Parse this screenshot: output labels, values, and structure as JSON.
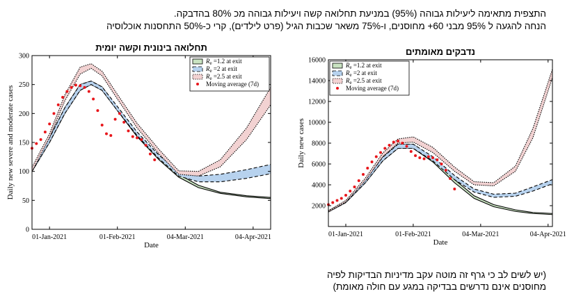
{
  "header": {
    "line1": "התצפית מתאימה ליעילות גבוהה (95%) במניעת תחלואה קשה ויעילות גבוהה מכ 80% בהדבקה.",
    "line2": "הנחה להגעה ל 95%  מבני 60+ מחוסנים, ו-75% משאר שכבות הגיל (פרט לילדים), קרי כ-50% התחסנות אוכלוסיה"
  },
  "footer": {
    "line1": "(יש לשים לב כי גרף זה מוטה עקב מדיניות הבדיקות לפיה",
    "line2": "מחוסנים אינם נדרשים בבדיקה במגע עם חולה מאומת)"
  },
  "colors": {
    "band_low": "#c9e3c1",
    "band_mid": "#b7d2ee",
    "band_high": "#f2d2d2",
    "line": "#000000",
    "dots": "#e8161b"
  },
  "chart_data": [
    {
      "type": "line",
      "title": "תחלואה בינונית וקשה יומית",
      "xlabel": "Date",
      "ylabel": "Daily new severe and moderate cases",
      "xlim": [
        "2020-12-24",
        "2021-04-12"
      ],
      "ylim": [
        0,
        300
      ],
      "x_ticks": [
        "01-Jan-2021",
        "01-Feb-2021",
        "04-Mar-2021",
        "04-Apr-2021"
      ],
      "y_ticks": [
        0,
        50,
        100,
        150,
        200,
        250,
        300
      ],
      "grid": false,
      "legend_position": "top-right",
      "legend": [
        "R_e =1.2 at exit",
        "R_e =2 at exit",
        "R_e =2.5 at exit",
        "Moving average (7d)"
      ],
      "series": [
        {
          "name": "R_e =1.2 at exit",
          "style": "band",
          "x": [
            "2020-12-24",
            "2021-01-01",
            "2021-01-08",
            "2021-01-15",
            "2021-01-20",
            "2021-01-25",
            "2021-02-01",
            "2021-02-10",
            "2021-02-20",
            "2021-03-01",
            "2021-03-10",
            "2021-03-20",
            "2021-04-01",
            "2021-04-12"
          ],
          "lower": [
            100,
            150,
            200,
            240,
            250,
            240,
            205,
            160,
            120,
            90,
            72,
            62,
            56,
            53
          ],
          "upper": [
            105,
            158,
            210,
            250,
            256,
            246,
            210,
            165,
            125,
            95,
            76,
            64,
            58,
            55
          ]
        },
        {
          "name": "R_e =2 at exit",
          "style": "band",
          "x": [
            "2020-12-24",
            "2021-01-01",
            "2021-01-08",
            "2021-01-15",
            "2021-01-20",
            "2021-01-25",
            "2021-02-01",
            "2021-02-10",
            "2021-02-20",
            "2021-03-01",
            "2021-03-10",
            "2021-03-20",
            "2021-04-01",
            "2021-04-12"
          ],
          "lower": [
            100,
            150,
            200,
            240,
            250,
            240,
            205,
            162,
            122,
            92,
            82,
            82,
            88,
            96
          ],
          "upper": [
            105,
            158,
            210,
            250,
            256,
            246,
            212,
            168,
            128,
            100,
            92,
            95,
            103,
            112
          ]
        },
        {
          "name": "R_e =2.5 at exit",
          "style": "band",
          "x": [
            "2020-12-24",
            "2021-01-01",
            "2021-01-08",
            "2021-01-15",
            "2021-01-20",
            "2021-01-25",
            "2021-02-01",
            "2021-02-10",
            "2021-02-20",
            "2021-03-01",
            "2021-03-10",
            "2021-03-20",
            "2021-04-01",
            "2021-04-12"
          ],
          "lower": [
            100,
            158,
            222,
            268,
            278,
            265,
            225,
            175,
            130,
            95,
            92,
            108,
            155,
            215
          ],
          "upper": [
            107,
            165,
            232,
            280,
            286,
            273,
            233,
            183,
            138,
            101,
            100,
            120,
            175,
            245
          ]
        },
        {
          "name": "Moving average (7d)",
          "style": "dots",
          "x": [
            "2020-12-24",
            "2020-12-26",
            "2020-12-28",
            "2020-12-30",
            "2021-01-01",
            "2021-01-03",
            "2021-01-05",
            "2021-01-07",
            "2021-01-09",
            "2021-01-11",
            "2021-01-13",
            "2021-01-15",
            "2021-01-17",
            "2021-01-19",
            "2021-01-21",
            "2021-01-23",
            "2021-01-25",
            "2021-01-27",
            "2021-01-29",
            "2021-01-31",
            "2021-02-02",
            "2021-02-04",
            "2021-02-06",
            "2021-02-08",
            "2021-02-10",
            "2021-02-12",
            "2021-02-14",
            "2021-02-16",
            "2021-02-18"
          ],
          "y": [
            140,
            148,
            155,
            168,
            182,
            200,
            215,
            228,
            238,
            245,
            249,
            248,
            245,
            238,
            225,
            205,
            180,
            165,
            162,
            190,
            200,
            185,
            170,
            160,
            158,
            155,
            145,
            130,
            120
          ]
        }
      ]
    },
    {
      "type": "line",
      "title": "נדבקים מאומתים",
      "xlabel": "Date",
      "ylabel": "Daily new cases",
      "xlim": [
        "2020-12-24",
        "2021-04-06"
      ],
      "ylim": [
        0,
        16000
      ],
      "x_ticks": [
        "01-Jan-2021",
        "01-Feb-2021",
        "04-Mar-2021",
        "04-Apr-2021"
      ],
      "y_ticks": [
        2000,
        4000,
        6000,
        8000,
        10000,
        12000,
        14000,
        16000
      ],
      "grid": false,
      "legend_position": "top-left",
      "legend": [
        "R_e =1.2 at exit",
        "R_e =2 at exit",
        "R_e =2.5 at exit",
        "Moving average (7d)"
      ],
      "series": [
        {
          "name": "R_e =1.2 at exit",
          "style": "band",
          "x": [
            "2020-12-24",
            "2021-01-01",
            "2021-01-10",
            "2021-01-18",
            "2021-01-25",
            "2021-02-01",
            "2021-02-10",
            "2021-02-20",
            "2021-03-01",
            "2021-03-10",
            "2021-03-20",
            "2021-03-28",
            "2021-04-06"
          ],
          "lower": [
            1400,
            2300,
            4200,
            6300,
            7500,
            7500,
            6200,
            4200,
            2700,
            1900,
            1450,
            1250,
            1150
          ],
          "upper": [
            1500,
            2450,
            4450,
            6650,
            7900,
            7900,
            6600,
            4500,
            2950,
            2100,
            1600,
            1350,
            1250
          ]
        },
        {
          "name": "R_e =2 at exit",
          "style": "band",
          "x": [
            "2020-12-24",
            "2021-01-01",
            "2021-01-10",
            "2021-01-18",
            "2021-01-25",
            "2021-02-01",
            "2021-02-10",
            "2021-02-20",
            "2021-03-01",
            "2021-03-10",
            "2021-03-20",
            "2021-03-28",
            "2021-04-06"
          ],
          "lower": [
            1400,
            2300,
            4200,
            6300,
            7500,
            7500,
            6300,
            4500,
            3300,
            2800,
            2900,
            3400,
            4100
          ],
          "upper": [
            1500,
            2450,
            4450,
            6650,
            7900,
            7900,
            6700,
            4900,
            3600,
            3100,
            3200,
            3800,
            4500
          ]
        },
        {
          "name": "R_e =2.5 at exit",
          "style": "band",
          "x": [
            "2020-12-24",
            "2021-01-01",
            "2021-01-10",
            "2021-01-18",
            "2021-01-25",
            "2021-02-01",
            "2021-02-10",
            "2021-02-20",
            "2021-03-01",
            "2021-03-10",
            "2021-03-20",
            "2021-03-28",
            "2021-04-06"
          ],
          "lower": [
            1400,
            2350,
            4400,
            6700,
            8000,
            8100,
            7100,
            5300,
            4000,
            3900,
            5300,
            8500,
            14300
          ],
          "upper": [
            1500,
            2500,
            4650,
            7050,
            8400,
            8600,
            7600,
            5700,
            4300,
            4200,
            5800,
            9400,
            15100
          ]
        },
        {
          "name": "Moving average (7d)",
          "style": "dots",
          "x": [
            "2020-12-24",
            "2020-12-26",
            "2020-12-28",
            "2020-12-30",
            "2021-01-01",
            "2021-01-03",
            "2021-01-05",
            "2021-01-07",
            "2021-01-09",
            "2021-01-11",
            "2021-01-13",
            "2021-01-15",
            "2021-01-17",
            "2021-01-19",
            "2021-01-21",
            "2021-01-23",
            "2021-01-25",
            "2021-01-27",
            "2021-01-29",
            "2021-01-31",
            "2021-02-02",
            "2021-02-04",
            "2021-02-06",
            "2021-02-08",
            "2021-02-10",
            "2021-02-12",
            "2021-02-14",
            "2021-02-16",
            "2021-02-18",
            "2021-02-20"
          ],
          "y": [
            2100,
            2300,
            2500,
            2700,
            3000,
            3400,
            3800,
            4400,
            5000,
            5600,
            6200,
            6700,
            7100,
            7500,
            7800,
            8100,
            8200,
            8000,
            7700,
            7200,
            6800,
            6600,
            6500,
            6700,
            6600,
            6400,
            6000,
            5400,
            4600,
            3600
          ]
        }
      ]
    }
  ]
}
